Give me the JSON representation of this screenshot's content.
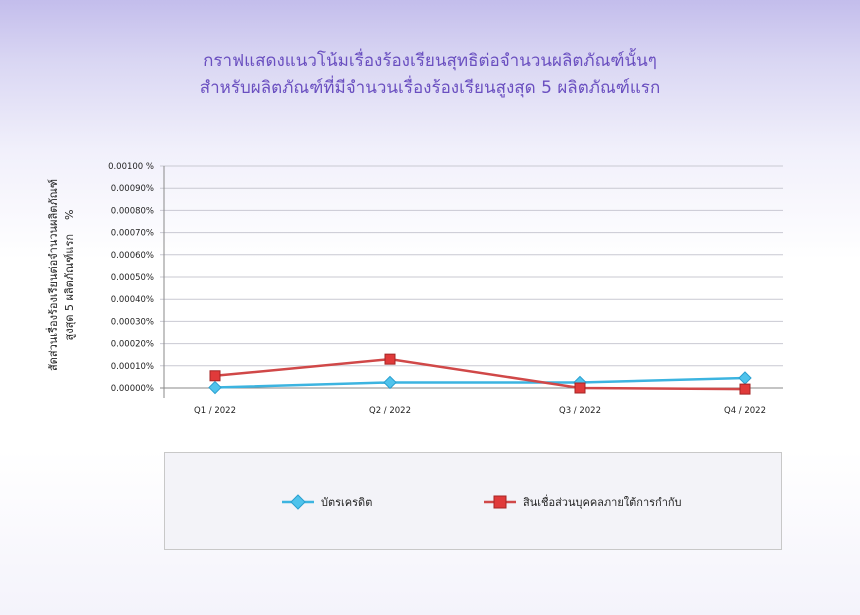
{
  "title_line1": "กราฟแสดงแนวโน้มเรื่องร้องเรียนสุทธิต่อจำนวนผลิตภัณฑ์นั้นๆ",
  "title_line2": "สำหรับผลิตภัณฑ์ที่มีจำนวนเรื่องร้องเรียนสูงสุด 5 ผลิตภัณฑ์แรก",
  "ylabel_line1": "สัดส่วนเรื่องร้องเรียนต่อจำนวนผลิตภัณฑ์",
  "ylabel_line2": "สูงสุด 5 ผลิตภัณฑ์แรก    %",
  "chart_data": {
    "type": "line",
    "categories": [
      "Q1 / 2022",
      "Q2 / 2022",
      "Q3 / 2022",
      "Q4 / 2022"
    ],
    "ylim": [
      0,
      0.001
    ],
    "yticks": [
      "0.00000%",
      "0.00010%",
      "0.00020%",
      "0.00030%",
      "0.00040%",
      "0.00050%",
      "0.00060%",
      "0.00070%",
      "0.00080%",
      "0.00090%",
      "0.00100 %"
    ],
    "grid": true,
    "legend": "bottom",
    "series": [
      {
        "name": "บัตรเครดิต",
        "values": [
          2e-06,
          2.5e-05,
          2.5e-05,
          4.5e-05
        ],
        "color": "#3cb4e0",
        "marker": "diamond"
      },
      {
        "name": "สินเชื่อส่วนบุคคลภายใต้การกำกับ",
        "values": [
          5.5e-05,
          0.00013,
          0.0,
          -5e-06
        ],
        "color": "#d04848",
        "marker": "cube"
      }
    ]
  }
}
